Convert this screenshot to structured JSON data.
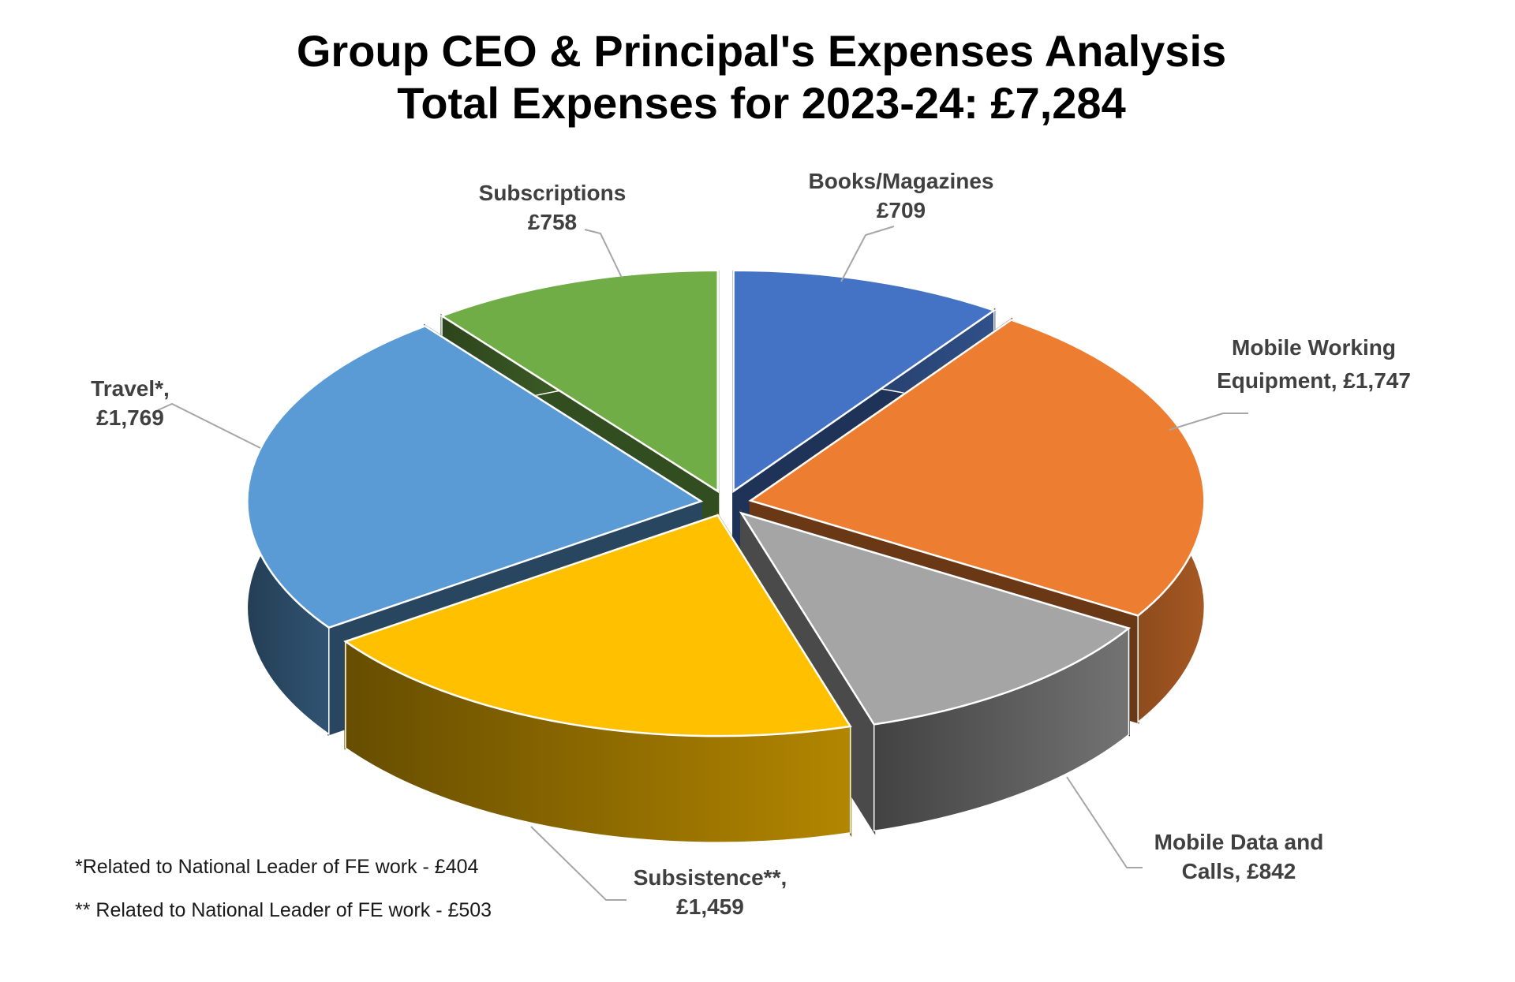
{
  "title": {
    "line1": "Group CEO & Principal's Expenses Analysis",
    "line2": "Total Expenses for 2023-24: £7,284"
  },
  "chart_data": {
    "type": "pie",
    "style": "3d-exploded",
    "title": "Group CEO & Principal's Expenses Analysis",
    "subtitle": "Total Expenses for 2023-24: £7,284",
    "total": 7284,
    "currency": "£",
    "start_angle_deg": 0,
    "direction": "clockwise",
    "legend": "none",
    "categories": [
      "Books/Magazines",
      "Mobile Working Equipment",
      "Mobile Data and Calls",
      "Subsistence**",
      "Travel*",
      "Subscriptions"
    ],
    "values": [
      709,
      1747,
      842,
      1459,
      1769,
      758
    ],
    "colors": [
      "#4472C4",
      "#ED7D31",
      "#A5A5A5",
      "#FFC000",
      "#5B9BD5",
      "#70AD47"
    ],
    "slugs": [
      "books-magazines",
      "mobile-working-equipment",
      "mobile-data-and-calls",
      "subsistence",
      "travel",
      "subscriptions"
    ],
    "labels": [
      {
        "lines": [
          "Books/Magazines",
          "£709"
        ]
      },
      {
        "lines": [
          "Mobile Working",
          "Equipment, £1,747"
        ]
      },
      {
        "lines": [
          "Mobile Data and",
          "Calls, £842"
        ]
      },
      {
        "lines": [
          "Subsistence**,",
          "£1,459"
        ]
      },
      {
        "lines": [
          "Travel*,",
          "£1,769"
        ]
      },
      {
        "lines": [
          "Subscriptions",
          "£758"
        ]
      }
    ]
  },
  "footnotes": [
    "*Related to National Leader of FE work - £404",
    "** Related to National Leader of FE work - £503"
  ],
  "colors": {
    "background": "#FFFFFF",
    "title_text": "#000000",
    "label_text": "#404040",
    "footnote_text": "#1A1A1A",
    "leader_line": "#A6A6A6",
    "slice_outline": "#FFFFFF"
  }
}
